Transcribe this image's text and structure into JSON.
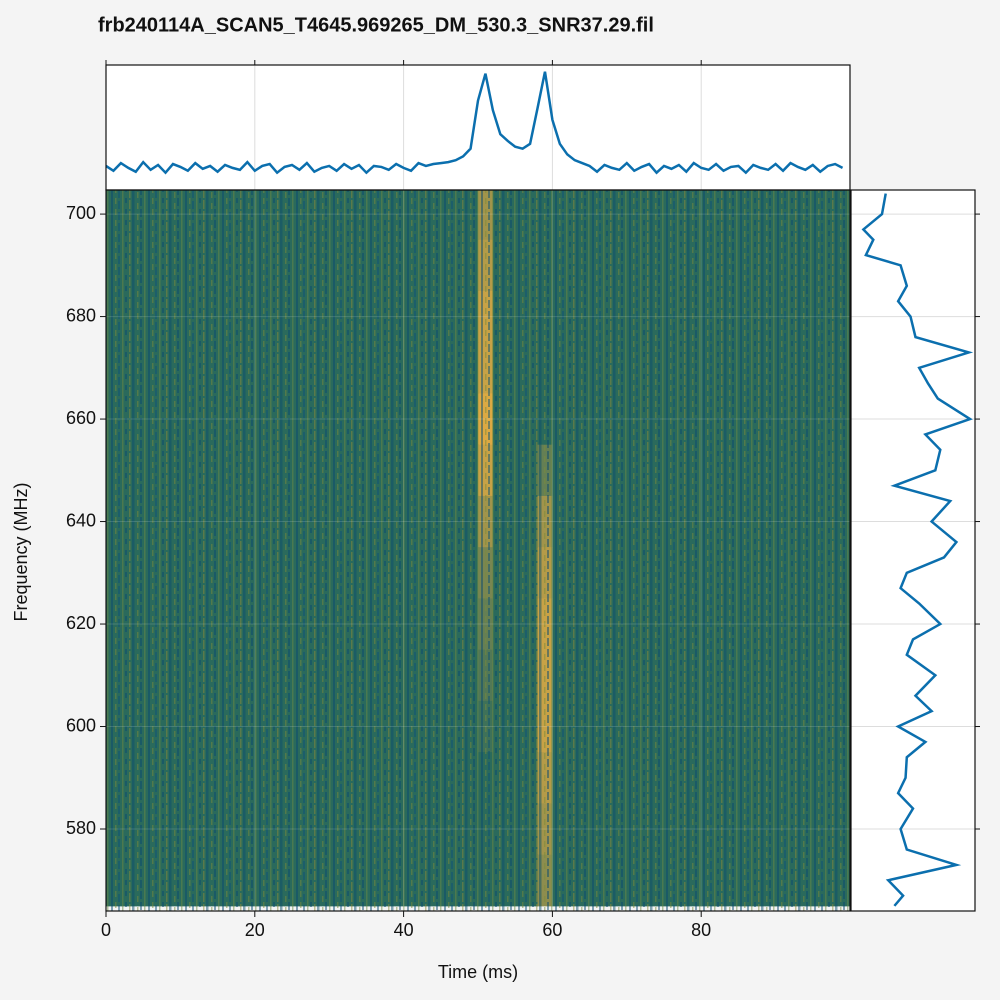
{
  "chart_data": [
    {
      "type": "heatmap",
      "title": "frb240114A_SCAN5_T4645.969265_DM_530.3_SNR37.29.fil",
      "x_label": "Time (ms)",
      "y_label": "Frequency (MHz)",
      "x": [
        1,
        3,
        5,
        7,
        9,
        11,
        13,
        15,
        17,
        19,
        21,
        23,
        25,
        27,
        29,
        31,
        33,
        35,
        37,
        39,
        41,
        43,
        45,
        47,
        49,
        51,
        53,
        55,
        57,
        59,
        61,
        63,
        65,
        67,
        69,
        71,
        73,
        75,
        77,
        79,
        81,
        83,
        85,
        87,
        89,
        91,
        93,
        95,
        97,
        99
      ],
      "y": [
        700,
        690,
        680,
        670,
        660,
        650,
        640,
        630,
        620,
        610,
        600,
        590,
        580,
        570
      ],
      "z": [
        [
          0,
          0,
          0,
          0,
          0,
          0,
          0,
          0,
          0,
          0,
          0,
          0,
          0,
          0,
          0,
          0,
          0,
          0,
          0,
          0,
          0,
          0,
          0,
          0,
          0,
          0.6,
          0,
          0,
          0,
          0,
          0,
          0,
          0,
          0,
          0,
          0,
          0,
          0,
          0,
          0,
          0,
          0,
          0,
          0,
          0,
          0,
          0,
          0,
          0,
          0
        ],
        [
          0,
          0,
          0,
          0,
          0,
          0,
          0,
          0,
          0,
          0,
          0,
          0,
          0,
          0,
          0,
          0,
          0,
          0,
          0,
          0,
          0,
          0,
          0,
          0,
          0,
          0.7,
          0,
          0,
          0,
          0,
          0,
          0,
          0,
          0,
          0,
          0,
          0,
          0,
          0,
          0,
          0,
          0,
          0,
          0,
          0,
          0,
          0,
          0,
          0,
          0
        ],
        [
          0,
          0,
          0,
          0,
          0,
          0,
          0,
          0,
          0,
          0,
          0,
          0,
          0,
          0,
          0,
          0,
          0,
          0,
          0,
          0,
          0,
          0,
          0,
          0,
          0,
          0.8,
          0,
          0,
          0,
          0,
          0,
          0,
          0,
          0,
          0,
          0,
          0,
          0,
          0,
          0,
          0,
          0,
          0,
          0,
          0,
          0,
          0,
          0,
          0,
          0
        ],
        [
          0,
          0,
          0,
          0,
          0,
          0,
          0,
          0,
          0,
          0,
          0,
          0,
          0,
          0,
          0,
          0,
          0,
          0,
          0,
          0,
          0,
          0,
          0,
          0,
          0,
          0.8,
          0,
          0,
          0,
          0,
          0,
          0,
          0,
          0,
          0,
          0,
          0,
          0,
          0,
          0,
          0,
          0,
          0,
          0,
          0,
          0,
          0,
          0,
          0,
          0
        ],
        [
          0,
          0,
          0,
          0,
          0,
          0,
          0,
          0,
          0,
          0,
          0,
          0,
          0,
          0,
          0,
          0,
          0,
          0,
          0,
          0,
          0,
          0,
          0,
          0,
          0,
          0.9,
          0,
          0,
          0,
          0,
          0,
          0,
          0,
          0,
          0,
          0,
          0,
          0,
          0,
          0,
          0,
          0,
          0,
          0,
          0,
          0,
          0,
          0,
          0,
          0
        ],
        [
          0,
          0,
          0,
          0,
          0,
          0,
          0,
          0,
          0,
          0,
          0,
          0,
          0,
          0,
          0,
          0,
          0,
          0,
          0,
          0,
          0,
          0,
          0,
          0,
          0,
          0.8,
          0,
          0,
          0,
          0.3,
          0,
          0,
          0,
          0,
          0,
          0,
          0,
          0,
          0,
          0,
          0,
          0,
          0,
          0,
          0,
          0,
          0,
          0,
          0,
          0
        ],
        [
          0,
          0,
          0,
          0,
          0,
          0,
          0,
          0,
          0,
          0,
          0,
          0,
          0,
          0,
          0,
          0,
          0,
          0,
          0,
          0,
          0,
          0,
          0,
          0,
          0,
          0.6,
          0,
          0,
          0,
          0.6,
          0,
          0,
          0,
          0,
          0,
          0,
          0,
          0,
          0,
          0,
          0,
          0,
          0,
          0,
          0,
          0,
          0,
          0,
          0,
          0
        ],
        [
          0,
          0,
          0,
          0,
          0,
          0,
          0,
          0,
          0,
          0,
          0,
          0,
          0,
          0,
          0,
          0,
          0,
          0,
          0,
          0,
          0,
          0,
          0,
          0,
          0,
          0.4,
          0,
          0,
          0,
          0.7,
          0,
          0,
          0,
          0,
          0,
          0,
          0,
          0,
          0,
          0,
          0,
          0,
          0,
          0,
          0,
          0,
          0,
          0,
          0,
          0
        ],
        [
          0,
          0,
          0,
          0,
          0,
          0,
          0,
          0,
          0,
          0,
          0,
          0,
          0,
          0,
          0,
          0,
          0,
          0,
          0,
          0,
          0,
          0,
          0,
          0,
          0,
          0.3,
          0,
          0,
          0,
          0.8,
          0,
          0,
          0,
          0,
          0,
          0,
          0,
          0,
          0,
          0,
          0,
          0,
          0,
          0,
          0,
          0,
          0,
          0,
          0,
          0
        ],
        [
          0,
          0,
          0,
          0,
          0,
          0,
          0,
          0,
          0,
          0,
          0,
          0,
          0,
          0,
          0,
          0,
          0,
          0,
          0,
          0,
          0,
          0,
          0,
          0,
          0,
          0.2,
          0,
          0,
          0,
          0.8,
          0,
          0,
          0,
          0,
          0,
          0,
          0,
          0,
          0,
          0,
          0,
          0,
          0,
          0,
          0,
          0,
          0,
          0,
          0,
          0
        ],
        [
          0,
          0,
          0,
          0,
          0,
          0,
          0,
          0,
          0,
          0,
          0,
          0,
          0,
          0,
          0,
          0,
          0,
          0,
          0,
          0,
          0,
          0,
          0,
          0,
          0,
          0.1,
          0,
          0,
          0,
          0.8,
          0,
          0,
          0,
          0,
          0,
          0,
          0,
          0,
          0,
          0,
          0,
          0,
          0,
          0,
          0,
          0,
          0,
          0,
          0,
          0
        ],
        [
          0,
          0,
          0,
          0,
          0,
          0,
          0,
          0,
          0,
          0,
          0,
          0,
          0,
          0,
          0,
          0,
          0,
          0,
          0,
          0,
          0,
          0,
          0,
          0,
          0,
          0,
          0,
          0,
          0,
          0.7,
          0,
          0,
          0,
          0,
          0,
          0,
          0,
          0,
          0,
          0,
          0,
          0,
          0,
          0,
          0,
          0,
          0,
          0,
          0,
          0
        ],
        [
          0,
          0,
          0,
          0,
          0,
          0,
          0,
          0,
          0,
          0,
          0,
          0,
          0,
          0,
          0,
          0,
          0,
          0,
          0,
          0,
          0,
          0,
          0,
          0,
          0,
          0,
          0,
          0,
          0,
          0.6,
          0,
          0,
          0,
          0,
          0,
          0,
          0,
          0,
          0,
          0,
          0,
          0,
          0,
          0,
          0,
          0,
          0,
          0,
          0,
          0
        ],
        [
          0,
          0,
          0,
          0,
          0,
          0,
          0,
          0,
          0,
          0,
          0,
          0,
          0,
          0,
          0,
          0,
          0,
          0,
          0,
          0,
          0,
          0,
          0,
          0,
          0,
          0,
          0,
          0,
          0,
          0.5,
          0,
          0,
          0,
          0,
          0,
          0,
          0,
          0,
          0,
          0,
          0,
          0,
          0,
          0,
          0,
          0,
          0,
          0,
          0,
          0
        ]
      ],
      "colors": [
        "#2a6a5c",
        "#f0b040"
      ],
      "xlim": [
        0,
        100
      ],
      "ylim": [
        564,
        704.7
      ],
      "xticks": [
        0,
        20,
        40,
        60,
        80
      ],
      "yticks": [
        580,
        600,
        620,
        640,
        660,
        680,
        700
      ],
      "grid": true
    },
    {
      "type": "line",
      "x": [
        0,
        1,
        2,
        3,
        4,
        5,
        6,
        7,
        8,
        9,
        10,
        11,
        12,
        13,
        14,
        15,
        16,
        17,
        18,
        19,
        20,
        21,
        22,
        23,
        24,
        25,
        26,
        27,
        28,
        29,
        30,
        31,
        32,
        33,
        34,
        35,
        36,
        37,
        38,
        39,
        40,
        41,
        42,
        43,
        44,
        45,
        46,
        47,
        48,
        49,
        50,
        51,
        52,
        53,
        54,
        55,
        56,
        57,
        58,
        59,
        60,
        61,
        62,
        63,
        64,
        65,
        66,
        67,
        68,
        69,
        70,
        71,
        72,
        73,
        74,
        75,
        76,
        77,
        78,
        79,
        80,
        81,
        82,
        83,
        84,
        85,
        86,
        87,
        88,
        89,
        90,
        91,
        92,
        93,
        94,
        95,
        96,
        97,
        98,
        99
      ],
      "values": [
        0.02,
        -0.03,
        0.05,
        0.0,
        -0.04,
        0.06,
        -0.02,
        0.03,
        -0.05,
        0.04,
        0.01,
        -0.03,
        0.05,
        -0.01,
        0.02,
        -0.04,
        0.03,
        0.0,
        -0.02,
        0.06,
        -0.03,
        0.02,
        0.04,
        -0.05,
        0.01,
        0.03,
        -0.02,
        0.05,
        -0.04,
        0.0,
        0.02,
        -0.03,
        0.04,
        -0.01,
        0.03,
        -0.05,
        0.02,
        0.01,
        -0.02,
        0.04,
        0.0,
        -0.03,
        0.05,
        0.02,
        0.04,
        0.05,
        0.06,
        0.08,
        0.12,
        0.2,
        0.7,
        0.98,
        0.6,
        0.35,
        0.28,
        0.22,
        0.2,
        0.25,
        0.62,
        1.0,
        0.5,
        0.25,
        0.14,
        0.08,
        0.05,
        0.02,
        -0.04,
        0.03,
        0.0,
        -0.02,
        0.05,
        -0.03,
        0.01,
        0.04,
        -0.05,
        0.02,
        -0.01,
        0.03,
        -0.04,
        0.05,
        0.0,
        -0.02,
        0.04,
        -0.03,
        0.01,
        0.02,
        -0.05,
        0.03,
        0.0,
        -0.02,
        0.04,
        -0.03,
        0.05,
        0.01,
        -0.02,
        0.03,
        -0.04,
        0.02,
        0.04,
        0.0
      ],
      "color": "#0b6fae",
      "xlim": [
        0,
        100
      ],
      "ylim": [
        -0.23,
        1.07
      ],
      "xticks": [
        0,
        20,
        40,
        60,
        80
      ],
      "grid": true
    },
    {
      "type": "line",
      "orientation": "horizontal",
      "y": [
        704,
        700,
        697,
        695,
        692,
        690,
        686,
        683,
        680,
        676,
        673,
        670,
        667,
        664,
        660,
        657,
        654,
        650,
        647,
        644,
        640,
        636,
        633,
        630,
        627,
        624,
        620,
        617,
        614,
        610,
        606,
        603,
        600,
        597,
        594,
        590,
        587,
        584,
        580,
        576,
        573,
        570,
        567,
        565
      ],
      "values": [
        0.28,
        0.25,
        0.1,
        0.18,
        0.12,
        0.4,
        0.45,
        0.38,
        0.48,
        0.52,
        0.95,
        0.55,
        0.62,
        0.7,
        0.96,
        0.6,
        0.72,
        0.68,
        0.35,
        0.8,
        0.65,
        0.85,
        0.75,
        0.45,
        0.4,
        0.55,
        0.72,
        0.5,
        0.45,
        0.68,
        0.52,
        0.65,
        0.38,
        0.6,
        0.45,
        0.44,
        0.38,
        0.5,
        0.4,
        0.45,
        0.85,
        0.3,
        0.42,
        0.35
      ],
      "color": "#0b6fae",
      "xlim": [
        0,
        1
      ],
      "ylim": [
        564,
        704.7
      ],
      "yticks": [
        580,
        600,
        620,
        640,
        660,
        680,
        700
      ],
      "grid": true
    }
  ]
}
